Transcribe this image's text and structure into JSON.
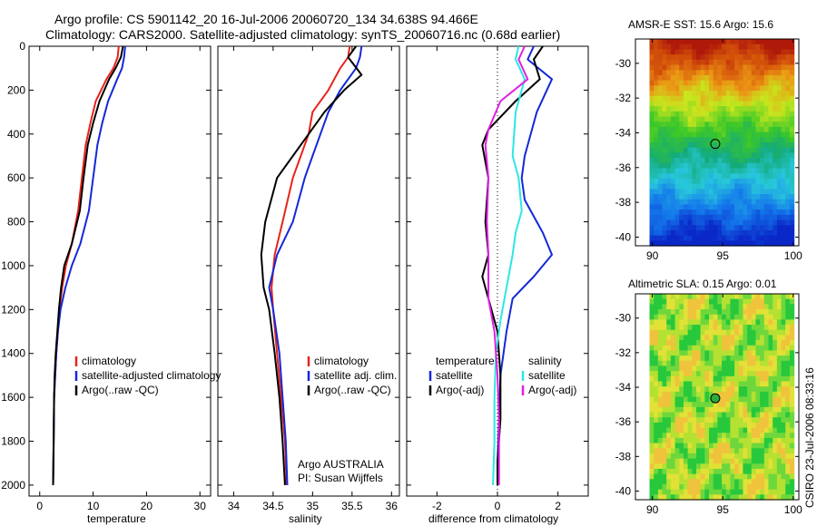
{
  "figure": {
    "title_line1": "Argo profile: CS 5901142_20 16-Jul-2006 20060720_134 34.638S 94.466E",
    "title_line2": "Climatology: CARS2000. Satellite-adjusted climatology: synTS_20060716.nc (0.68d earlier)",
    "footer_vertical": "CSIRO 23-Jul-2006 08:33:16",
    "credit_line1": "Argo AUSTRALIA",
    "credit_line2": "PI: Susan Wijffels"
  },
  "colors": {
    "red": "#e8231a",
    "blue": "#1428d8",
    "black": "#000000",
    "cyan": "#2ee6e6",
    "magenta": "#e020e0"
  },
  "chart_data": [
    {
      "type": "line",
      "id": "temperature-profile",
      "xlabel": "temperature",
      "ylabel": "",
      "xlim": [
        -2,
        32
      ],
      "ylim": [
        2050,
        0
      ],
      "y_reversed": true,
      "xticks": [
        0,
        10,
        20,
        30
      ],
      "yticks": [
        0,
        200,
        400,
        600,
        800,
        1000,
        1200,
        1400,
        1600,
        1800,
        2000
      ],
      "series": [
        {
          "name": "climatology",
          "color": "red",
          "x": [
            14.8,
            14.6,
            13.8,
            12.5,
            10.5,
            9.5,
            8.6,
            7.9,
            7.2,
            6.0,
            4.9,
            4.2,
            3.7,
            3.4,
            3.1,
            2.9,
            2.7,
            2.6,
            2.5
          ],
          "y": [
            0,
            50,
            100,
            150,
            250,
            350,
            450,
            600,
            750,
            900,
            1000,
            1100,
            1200,
            1300,
            1400,
            1500,
            1600,
            1800,
            2000
          ]
        },
        {
          "name": "satellite-adjusted climatology",
          "color": "blue",
          "x": [
            16.0,
            15.8,
            15.4,
            14.5,
            12.8,
            11.7,
            10.8,
            10.0,
            9.2,
            7.6,
            6.0,
            4.8,
            3.9,
            3.4,
            3.1,
            2.9,
            2.7,
            2.6,
            2.5
          ],
          "y": [
            0,
            50,
            100,
            150,
            250,
            350,
            450,
            600,
            750,
            900,
            1000,
            1100,
            1200,
            1300,
            1400,
            1500,
            1600,
            1800,
            2000
          ]
        },
        {
          "name": "Argo(..raw -QC)",
          "color": "black",
          "x": [
            15.6,
            15.2,
            14.2,
            13.0,
            11.2,
            10.0,
            9.0,
            8.2,
            7.5,
            6.0,
            4.6,
            4.0,
            3.6,
            3.3,
            3.0,
            2.8,
            2.7,
            2.6,
            2.5
          ],
          "y": [
            0,
            50,
            100,
            150,
            250,
            350,
            450,
            600,
            750,
            900,
            1000,
            1100,
            1200,
            1300,
            1400,
            1500,
            1600,
            1800,
            2000
          ]
        }
      ]
    },
    {
      "type": "line",
      "id": "salinity-profile",
      "xlabel": "salinity",
      "ylabel": "",
      "xlim": [
        33.8,
        36.1
      ],
      "ylim": [
        2050,
        0
      ],
      "y_reversed": true,
      "xticks": [
        34,
        34.5,
        35,
        35.5,
        36
      ],
      "series": [
        {
          "name": "climatology",
          "color": "red",
          "x": [
            35.47,
            35.45,
            35.35,
            35.2,
            35.0,
            34.95,
            34.85,
            34.75,
            34.62,
            34.52,
            34.48,
            34.5,
            34.55,
            34.6,
            34.65,
            34.67
          ],
          "y": [
            0,
            50,
            100,
            200,
            300,
            400,
            500,
            600,
            800,
            950,
            1100,
            1200,
            1400,
            1600,
            1800,
            2000
          ]
        },
        {
          "name": "satellite adj. clim.",
          "color": "blue",
          "x": [
            35.62,
            35.6,
            35.55,
            35.35,
            35.2,
            35.1,
            35.0,
            34.9,
            34.75,
            34.55,
            34.45,
            34.5,
            34.58,
            34.62,
            34.66,
            34.68
          ],
          "y": [
            0,
            50,
            100,
            200,
            300,
            400,
            500,
            600,
            800,
            950,
            1100,
            1200,
            1400,
            1600,
            1800,
            2000
          ]
        },
        {
          "name": "Argo(..raw -QC)",
          "color": "black",
          "x": [
            35.55,
            35.45,
            35.62,
            35.4,
            35.15,
            34.95,
            34.75,
            34.55,
            34.4,
            34.35,
            34.38,
            34.45,
            34.52,
            34.58,
            34.62,
            34.65
          ],
          "y": [
            0,
            50,
            130,
            200,
            300,
            400,
            500,
            600,
            800,
            950,
            1100,
            1200,
            1400,
            1600,
            1800,
            2000
          ]
        }
      ]
    },
    {
      "type": "line",
      "id": "difference-profile",
      "xlabel": "difference from climatology",
      "ylabel": "",
      "xlim": [
        -3,
        3
      ],
      "ylim": [
        2050,
        0
      ],
      "y_reversed": true,
      "xticks": [
        -2,
        0,
        2
      ],
      "legend_titles": [
        "temperature",
        "salinity"
      ],
      "series": [
        {
          "name": "satellite",
          "group": "temperature",
          "color": "blue",
          "x": [
            1.2,
            1.0,
            1.8,
            1.3,
            0.9,
            0.8,
            0.9,
            1.5,
            1.8,
            1.2,
            0.5,
            0.3,
            0.1,
            0.05,
            0.0,
            0.0
          ],
          "y": [
            0,
            60,
            150,
            300,
            500,
            600,
            700,
            850,
            950,
            1050,
            1150,
            1300,
            1500,
            1700,
            1900,
            2000
          ]
        },
        {
          "name": "Argo(-adj)",
          "group": "temperature",
          "color": "black",
          "x": [
            1.5,
            1.2,
            1.4,
            0.6,
            -0.3,
            -0.5,
            -0.3,
            -0.4,
            -0.3,
            -0.5,
            -0.3,
            0.0,
            0.1,
            0.1,
            0.0,
            0.0
          ],
          "y": [
            0,
            60,
            150,
            250,
            380,
            450,
            600,
            800,
            950,
            1050,
            1150,
            1300,
            1500,
            1700,
            1900,
            2000
          ]
        },
        {
          "name": "satellite",
          "group": "salinity",
          "color": "cyan",
          "x": [
            0.7,
            0.6,
            0.9,
            0.6,
            0.5,
            0.7,
            0.8,
            0.6,
            0.5,
            0.3,
            0.1,
            -0.05,
            -0.1,
            -0.1,
            -0.15
          ],
          "y": [
            0,
            60,
            150,
            300,
            500,
            600,
            750,
            850,
            950,
            1100,
            1250,
            1400,
            1600,
            1800,
            2000
          ]
        },
        {
          "name": "Argo(-adj)",
          "group": "salinity",
          "color": "magenta",
          "x": [
            0.9,
            0.7,
            1.0,
            0.1,
            -0.3,
            -0.4,
            -0.3,
            -0.35,
            -0.3,
            -0.3,
            -0.1,
            0.0,
            0.05,
            0.05,
            0.05
          ],
          "y": [
            0,
            60,
            150,
            250,
            380,
            450,
            600,
            800,
            950,
            1150,
            1300,
            1500,
            1700,
            1850,
            2000
          ]
        }
      ]
    },
    {
      "type": "heatmap",
      "id": "amsre-sst-map",
      "title": "AMSR-E SST: 15.6 Argo: 15.6",
      "xlim": [
        88.8,
        100.4
      ],
      "ylim": [
        -40.5,
        -28.6
      ],
      "xticks": [
        90,
        95,
        100
      ],
      "yticks": [
        -30,
        -32,
        -34,
        -36,
        -38,
        -40
      ],
      "marker": {
        "lon": 94.466,
        "lat": -34.638
      },
      "palette": "jet-warm-north"
    },
    {
      "type": "heatmap",
      "id": "altimetric-sla-map",
      "title": "Altimetric SLA: 0.15 Argo: 0.01",
      "xlim": [
        88.8,
        100.4
      ],
      "ylim": [
        -40.5,
        -28.6
      ],
      "xticks": [
        90,
        95,
        100
      ],
      "yticks": [
        -30,
        -32,
        -34,
        -36,
        -38,
        -40
      ],
      "marker": {
        "lon": 94.466,
        "lat": -34.638
      },
      "palette": "green-yellow-blobs"
    }
  ]
}
